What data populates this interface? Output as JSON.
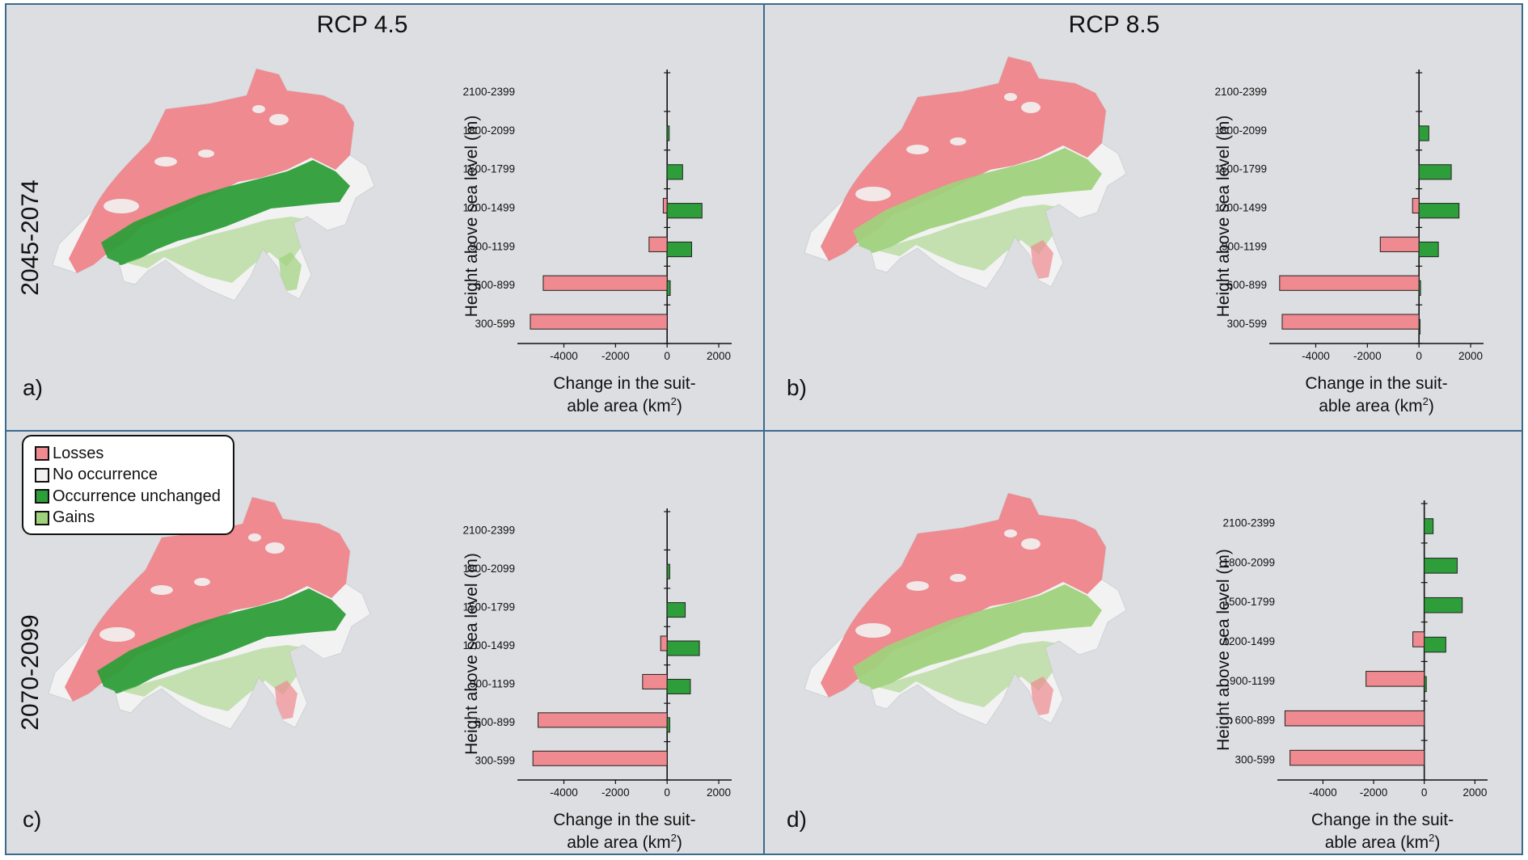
{
  "scenarios": [
    "RCP 4.5",
    "RCP 8.5"
  ],
  "periods": [
    "2045-2074",
    "2070-2099"
  ],
  "panel_labels": [
    "a)",
    "b)",
    "c)",
    "d)"
  ],
  "legend": {
    "items": [
      {
        "label": "Losses",
        "color": "#ee8a90"
      },
      {
        "label": "No occurrence",
        "color": "#f2f2f2"
      },
      {
        "label": "Occurrence unchanged",
        "color": "#2e9e3a"
      },
      {
        "label": "Gains",
        "color": "#9fd27c"
      }
    ]
  },
  "colors": {
    "losses": "#ee8a90",
    "no_occurrence": "#f2f2f2",
    "unchanged": "#2e9e3a",
    "gains": "#9fd27c",
    "frame": "#3a6a90",
    "panel_background": "#dcdee1"
  },
  "chart_data": [
    {
      "panel": "a)",
      "type": "bar",
      "orientation": "horizontal",
      "ylabel": "Height above sea level (m)",
      "xlabel_line1": "Change in the suit-",
      "xlabel_line2": "able area (km",
      "xlabel_sup": "2",
      "xlabel_end": ")",
      "categories": [
        "2100-2399",
        "1800-2099",
        "1500-1799",
        "1200-1499",
        "900-1199",
        "600-899",
        "300-599"
      ],
      "xlim": [
        -5800,
        2500
      ],
      "xticks": [
        -4000,
        -2000,
        0,
        2000
      ],
      "series": [
        {
          "values": [
            0,
            0,
            0,
            -150,
            -700,
            -4800,
            -5300
          ]
        },
        {
          "values": [
            0,
            80,
            600,
            1350,
            950,
            120,
            0
          ]
        }
      ]
    },
    {
      "panel": "b)",
      "type": "bar",
      "orientation": "horizontal",
      "ylabel": "Height above sea level (m)",
      "xlabel_line1": "Change in the suit-",
      "xlabel_line2": "able area (km",
      "xlabel_sup": "2",
      "xlabel_end": ")",
      "categories": [
        "2100-2399",
        "1800-2099",
        "1500-1799",
        "1200-1499",
        "900-1199",
        "600-899",
        "300-599"
      ],
      "xlim": [
        -5800,
        2500
      ],
      "xticks": [
        -4000,
        -2000,
        0,
        2000
      ],
      "series": [
        {
          "values": [
            0,
            0,
            0,
            -250,
            -1500,
            -5400,
            -5300
          ]
        },
        {
          "values": [
            0,
            380,
            1250,
            1550,
            750,
            60,
            40
          ]
        }
      ]
    },
    {
      "panel": "c)",
      "type": "bar",
      "orientation": "horizontal",
      "ylabel": "Height above sea level (m)",
      "xlabel_line1": "Change in the suit-",
      "xlabel_line2": "able area (km",
      "xlabel_sup": "2",
      "xlabel_end": ")",
      "categories": [
        "2100-2399",
        "1800-2099",
        "1500-1799",
        "1200-1499",
        "900-1199",
        "600-899",
        "300-599"
      ],
      "xlim": [
        -5800,
        2500
      ],
      "xticks": [
        -4000,
        -2000,
        0,
        2000
      ],
      "series": [
        {
          "values": [
            0,
            0,
            0,
            -250,
            -950,
            -5000,
            -5200
          ]
        },
        {
          "values": [
            0,
            100,
            700,
            1250,
            900,
            100,
            0
          ]
        }
      ]
    },
    {
      "panel": "d)",
      "type": "bar",
      "orientation": "horizontal",
      "ylabel": "Height above sea level (m)",
      "xlabel_line1": "Change in the suit-",
      "xlabel_line2": "able area (km",
      "xlabel_sup": "2",
      "xlabel_end": ")",
      "categories": [
        "2100-2399",
        "1800-2099",
        "1500-1799",
        "1200-1499",
        "900-1199",
        "600-899",
        "300-599"
      ],
      "xlim": [
        -5800,
        2500
      ],
      "xticks": [
        -4000,
        -2000,
        0,
        2000
      ],
      "series": [
        {
          "values": [
            0,
            0,
            0,
            -450,
            -2300,
            -5500,
            -5300
          ]
        },
        {
          "values": [
            350,
            1300,
            1500,
            850,
            80,
            0,
            0
          ]
        }
      ]
    }
  ]
}
